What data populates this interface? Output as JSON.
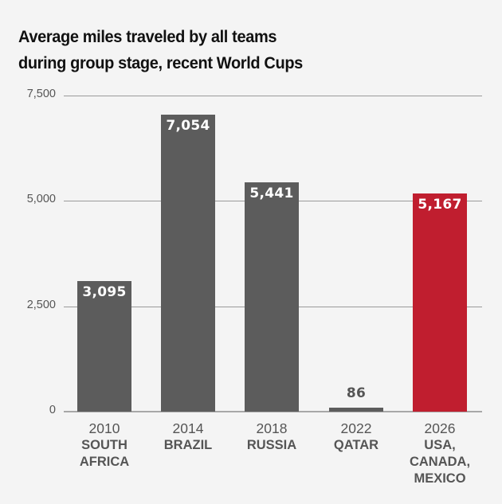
{
  "chart_data": {
    "type": "bar",
    "title": "Average miles traveled by all teams during group stage, recent World Cups",
    "title_lines": [
      "Average miles traveled by all teams",
      "during group stage, recent World Cups"
    ],
    "xlabel": "",
    "ylabel": "",
    "ylim": [
      0,
      7500
    ],
    "yticks": [
      0,
      2500,
      5000,
      7500
    ],
    "ytick_labels": [
      "0",
      "2,500",
      "5,000",
      "7,500"
    ],
    "grid": true,
    "legend": null,
    "categories": [
      "2010 SOUTH AFRICA",
      "2014 BRAZIL",
      "2018 RUSSIA",
      "2022 QATAR",
      "2026 USA, CANADA, MEXICO"
    ],
    "years": [
      "2010",
      "2014",
      "2018",
      "2022",
      "2026"
    ],
    "hosts": [
      "SOUTH\nAFRICA",
      "BRAZIL",
      "RUSSIA",
      "QATAR",
      "USA,\nCANADA,\nMEXICO"
    ],
    "values": [
      3095,
      7054,
      5441,
      86,
      5167
    ],
    "value_labels": [
      "3,095",
      "7,054",
      "5,441",
      "86",
      "5,167"
    ],
    "colors": [
      "#5c5c5c",
      "#5c5c5c",
      "#5c5c5c",
      "#5c5c5c",
      "#c01e2f"
    ],
    "highlight_index": 4
  }
}
